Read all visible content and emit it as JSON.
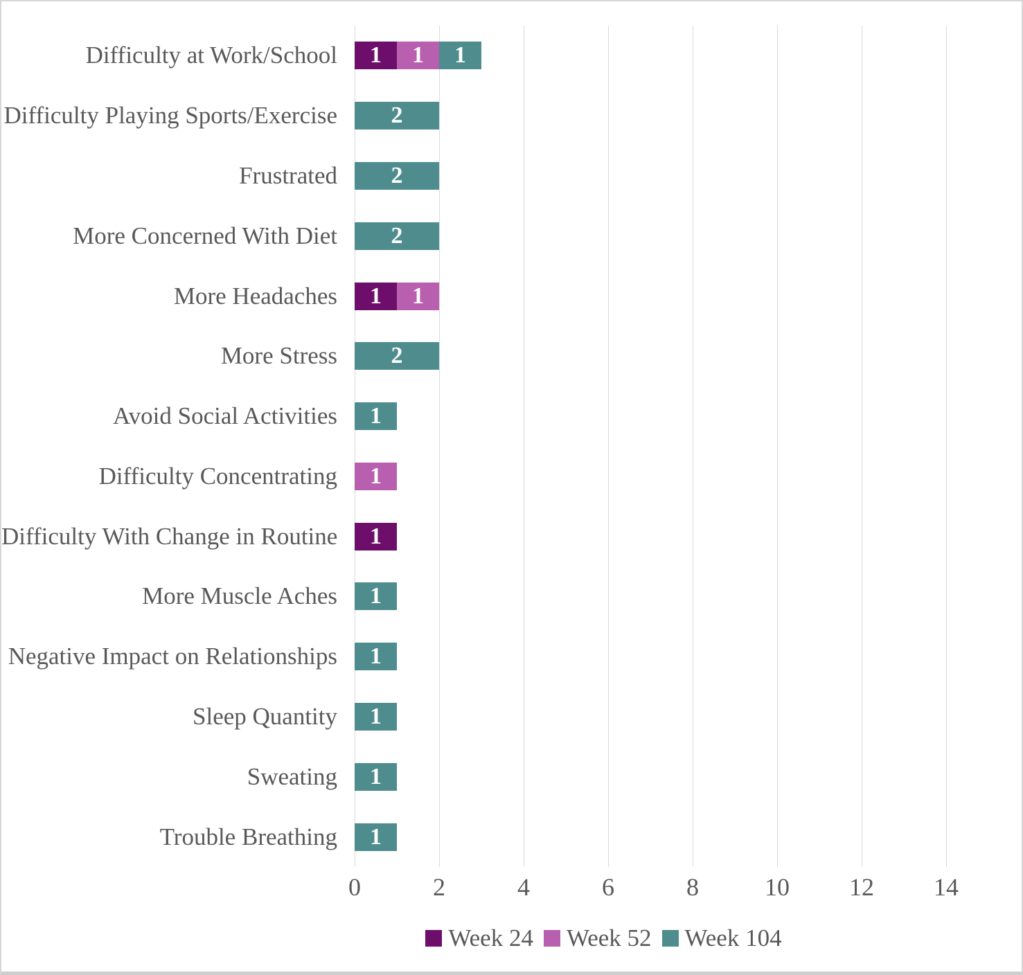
{
  "chart_data": {
    "type": "bar",
    "orientation": "horizontal",
    "stacked": true,
    "title": "",
    "xlabel": "",
    "ylabel": "",
    "categories": [
      "Difficulty at Work/School",
      "Difficulty Playing Sports/Exercise",
      "Frustrated",
      "More Concerned With Diet",
      "More Headaches",
      "More Stress",
      "Avoid Social Activities",
      "Difficulty Concentrating",
      "Difficulty With Change in Routine",
      "More Muscle Aches",
      "Negative Impact on Relationships",
      "Sleep Quantity",
      "Sweating",
      "Trouble Breathing"
    ],
    "series": [
      {
        "name": "Week 24",
        "color": "#6D0E6A",
        "values": [
          1,
          0,
          0,
          0,
          1,
          0,
          0,
          0,
          1,
          0,
          0,
          0,
          0,
          0
        ]
      },
      {
        "name": "Week 52",
        "color": "#B95FB0",
        "values": [
          1,
          0,
          0,
          0,
          1,
          0,
          0,
          1,
          0,
          0,
          0,
          0,
          0,
          0
        ]
      },
      {
        "name": "Week 104",
        "color": "#4E8C8E",
        "values": [
          1,
          2,
          2,
          2,
          0,
          2,
          1,
          0,
          0,
          1,
          1,
          1,
          1,
          1
        ]
      }
    ],
    "x_ticks": [
      0,
      2,
      4,
      6,
      8,
      10,
      12,
      14
    ],
    "xlim": [
      0,
      14
    ],
    "grid": true,
    "legend_position": "bottom",
    "data_labels": "segment values shown in white inside bars"
  },
  "colors": {
    "text": "#595959",
    "gridline": "#D9D9D9",
    "bar_label": "#FFFFFF",
    "frame_border": "#D7D7D7"
  }
}
